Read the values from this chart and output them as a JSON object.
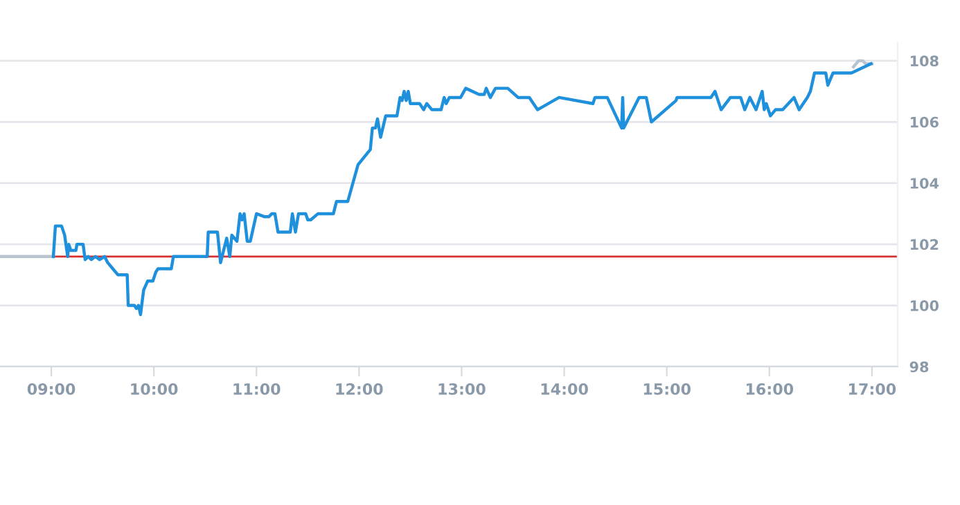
{
  "chart_data": {
    "type": "line",
    "xlim": [
      8.5,
      17.25
    ],
    "ylim": [
      98,
      108.6
    ],
    "xticks": [
      {
        "value": 9,
        "label": "09:00"
      },
      {
        "value": 10,
        "label": "10:00"
      },
      {
        "value": 11,
        "label": "11:00"
      },
      {
        "value": 12,
        "label": "12:00"
      },
      {
        "value": 13,
        "label": "13:00"
      },
      {
        "value": 14,
        "label": "14:00"
      },
      {
        "value": 15,
        "label": "15:00"
      },
      {
        "value": 16,
        "label": "16:00"
      },
      {
        "value": 17,
        "label": "17:00"
      }
    ],
    "yticks": [
      98,
      100,
      102,
      104,
      106,
      108
    ],
    "grid": "y",
    "line_style": "solid",
    "marker": "none",
    "ref_lines": [
      {
        "axis": "y",
        "value": 101.6,
        "color": "#d62f2f"
      }
    ],
    "series": [
      {
        "color": "#b8c4d0",
        "x": [
          8.5,
          9.02
        ],
        "values": [
          101.6,
          101.6
        ]
      },
      {
        "color": "#b8c4d0",
        "x": [
          16.82,
          16.87,
          16.91,
          16.94,
          17.0
        ],
        "values": [
          107.8,
          108.0,
          108.0,
          107.9,
          107.9
        ]
      },
      {
        "color": "#1e90dc",
        "x": [
          9.02,
          9.04,
          9.1,
          9.13,
          9.16,
          9.17,
          9.19,
          9.24,
          9.25,
          9.31,
          9.33,
          9.36,
          9.39,
          9.43,
          9.47,
          9.52,
          9.55,
          9.6,
          9.65,
          9.74,
          9.75,
          9.81,
          9.83,
          9.85,
          9.87,
          9.9,
          9.94,
          9.99,
          10.02,
          10.04,
          10.17,
          10.19,
          10.52,
          10.53,
          10.62,
          10.65,
          10.71,
          10.74,
          10.76,
          10.81,
          10.84,
          10.86,
          10.88,
          10.91,
          10.94,
          11.0,
          11.08,
          11.12,
          11.15,
          11.18,
          11.21,
          11.33,
          11.35,
          11.38,
          11.41,
          11.48,
          11.5,
          11.53,
          11.6,
          11.75,
          11.78,
          11.89,
          11.99,
          12.11,
          12.13,
          12.16,
          12.18,
          12.21,
          12.26,
          12.37,
          12.4,
          12.42,
          12.44,
          12.46,
          12.48,
          12.5,
          12.59,
          12.63,
          12.66,
          12.71,
          12.8,
          12.83,
          12.85,
          12.88,
          12.99,
          13.04,
          13.17,
          13.22,
          13.24,
          13.28,
          13.33,
          13.45,
          13.55,
          13.66,
          13.74,
          13.95,
          14.28,
          14.3,
          14.42,
          14.56,
          14.57,
          14.58,
          14.73,
          14.8,
          14.85,
          15.09,
          15.1,
          15.43,
          15.47,
          15.49,
          15.53,
          15.62,
          15.72,
          15.76,
          15.81,
          15.87,
          15.93,
          15.95,
          15.97,
          16.01,
          16.06,
          16.13,
          16.24,
          16.29,
          16.37,
          16.4,
          16.44,
          16.55,
          16.57,
          16.62,
          16.8,
          16.99
        ],
        "values": [
          101.6,
          102.6,
          102.6,
          102.3,
          101.6,
          102.0,
          101.8,
          101.8,
          102.0,
          102.0,
          101.5,
          101.6,
          101.5,
          101.6,
          101.5,
          101.6,
          101.4,
          101.2,
          101.0,
          101.0,
          100.0,
          100.0,
          99.9,
          100.0,
          99.7,
          100.5,
          100.8,
          100.8,
          101.1,
          101.2,
          101.2,
          101.6,
          101.6,
          102.4,
          102.4,
          101.4,
          102.2,
          101.6,
          102.3,
          102.1,
          103.0,
          102.8,
          103.0,
          102.1,
          102.1,
          103.0,
          102.9,
          102.9,
          103.0,
          103.0,
          102.4,
          102.4,
          103.0,
          102.4,
          103.0,
          103.0,
          102.8,
          102.8,
          103.0,
          103.0,
          103.4,
          103.4,
          104.6,
          105.1,
          105.8,
          105.8,
          106.1,
          105.5,
          106.2,
          106.2,
          106.8,
          106.7,
          107.0,
          106.7,
          107.0,
          106.6,
          106.6,
          106.4,
          106.6,
          106.4,
          106.4,
          106.8,
          106.6,
          106.8,
          106.8,
          107.1,
          106.9,
          106.9,
          107.1,
          106.8,
          107.1,
          107.1,
          106.8,
          106.8,
          106.4,
          106.8,
          106.6,
          106.8,
          106.8,
          105.8,
          106.8,
          105.8,
          106.8,
          106.8,
          106.0,
          106.7,
          106.8,
          106.8,
          107.0,
          106.8,
          106.4,
          106.8,
          106.8,
          106.4,
          106.8,
          106.4,
          107.0,
          106.4,
          106.6,
          106.2,
          106.4,
          106.4,
          106.8,
          106.4,
          106.8,
          107.0,
          107.6,
          107.6,
          107.2,
          107.6,
          107.6,
          107.9
        ]
      }
    ]
  }
}
